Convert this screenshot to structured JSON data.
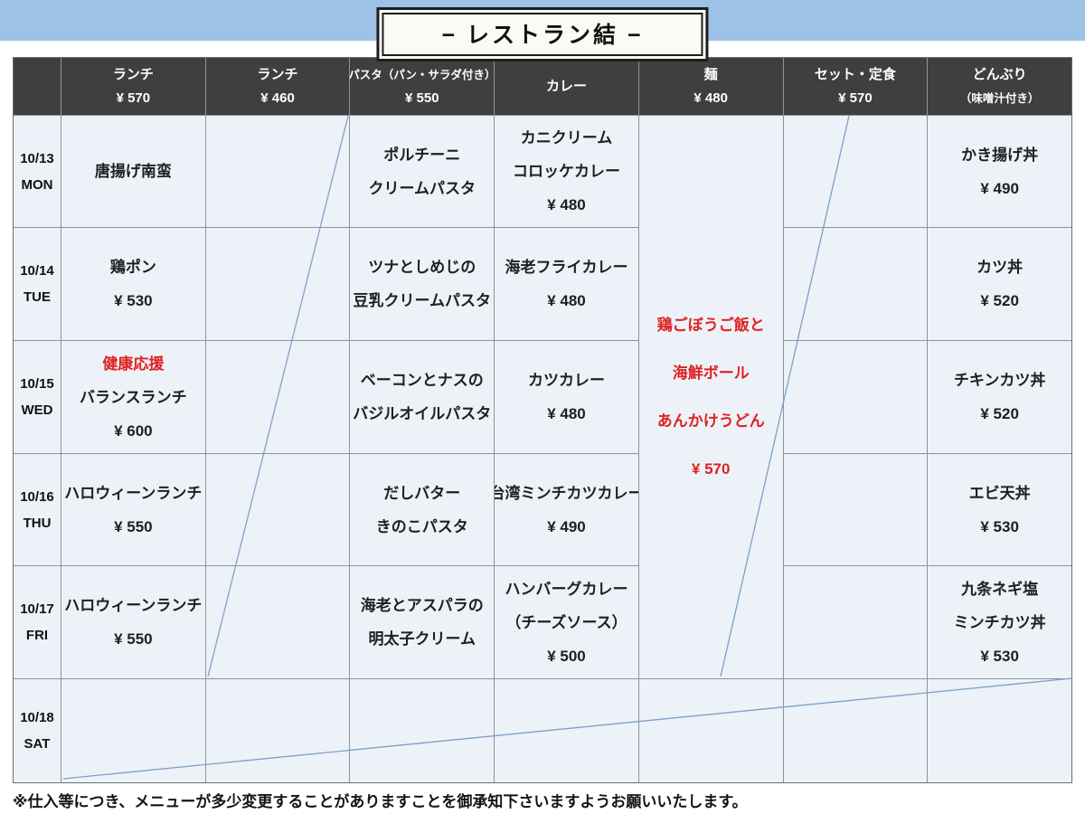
{
  "banner": {
    "title": "− レストラン結 −"
  },
  "colors": {
    "banner_bg": "#9cc2e6",
    "header_bg": "#3f3f3f",
    "cell_bg": "#edf2f8",
    "grid_line": "#8f9399",
    "accent_red": "#e02020",
    "diagonal_line": "#7f9fc6"
  },
  "table": {
    "header_columns": [
      {
        "lines": []
      },
      {
        "lines": [
          {
            "t": "ランチ"
          },
          {
            "t": "¥ 570"
          }
        ]
      },
      {
        "lines": [
          {
            "t": "ランチ"
          },
          {
            "t": "¥ 460"
          }
        ]
      },
      {
        "lines": [
          {
            "t": "パスタ（パン・サラダ付き）",
            "small": true
          },
          {
            "t": "¥ 550"
          }
        ]
      },
      {
        "lines": [
          {
            "t": "カレー"
          }
        ]
      },
      {
        "lines": [
          {
            "t": "麺"
          },
          {
            "t": "¥ 480"
          }
        ]
      },
      {
        "lines": [
          {
            "t": "セット・定食"
          },
          {
            "t": "¥ 570"
          }
        ]
      },
      {
        "lines": [
          {
            "t": "どんぶり"
          },
          {
            "t": "（味噌汁付き）",
            "small": true
          }
        ]
      }
    ],
    "rows": [
      {
        "date": "10/13",
        "day": "MON",
        "cells": [
          {
            "lines": [
              {
                "t": "唐揚げ南蛮"
              }
            ]
          },
          {
            "lines": []
          },
          {
            "lines": [
              {
                "t": "ポルチーニ"
              },
              {
                "t": "クリームパスタ"
              }
            ]
          },
          {
            "lines": [
              {
                "t": "カニクリーム"
              },
              {
                "t": "コロッケカレー"
              },
              {
                "t": "¥ 480"
              }
            ]
          },
          null,
          {
            "lines": []
          },
          {
            "lines": [
              {
                "t": "かき揚げ丼"
              },
              {
                "t": "¥ 490"
              }
            ]
          }
        ]
      },
      {
        "date": "10/14",
        "day": "TUE",
        "cells": [
          {
            "lines": [
              {
                "t": "鶏ポン"
              },
              {
                "t": "¥ 530"
              }
            ]
          },
          {
            "lines": []
          },
          {
            "lines": [
              {
                "t": "ツナとしめじの"
              },
              {
                "t": "豆乳クリームパスタ"
              }
            ]
          },
          {
            "lines": [
              {
                "t": "海老フライカレー"
              },
              {
                "t": "¥ 480"
              }
            ]
          },
          null,
          {
            "lines": []
          },
          {
            "lines": [
              {
                "t": "カツ丼"
              },
              {
                "t": "¥ 520"
              }
            ]
          }
        ]
      },
      {
        "date": "10/15",
        "day": "WED",
        "cells": [
          {
            "lines": [
              {
                "t": "健康応援",
                "red": true
              },
              {
                "t": "バランスランチ"
              },
              {
                "t": "¥ 600"
              }
            ]
          },
          {
            "lines": []
          },
          {
            "lines": [
              {
                "t": "ベーコンとナスの"
              },
              {
                "t": "バジルオイルパスタ"
              }
            ]
          },
          {
            "lines": [
              {
                "t": "カツカレー"
              },
              {
                "t": "¥ 480"
              }
            ]
          },
          null,
          {
            "lines": []
          },
          {
            "lines": [
              {
                "t": "チキンカツ丼"
              },
              {
                "t": "¥ 520"
              }
            ]
          }
        ]
      },
      {
        "date": "10/16",
        "day": "THU",
        "cells": [
          {
            "lines": [
              {
                "t": "ハロウィーンランチ"
              },
              {
                "t": "¥ 550"
              }
            ]
          },
          {
            "lines": []
          },
          {
            "lines": [
              {
                "t": "だしバター"
              },
              {
                "t": "きのこパスタ"
              }
            ]
          },
          {
            "lines": [
              {
                "t": "台湾ミンチカツカレー"
              },
              {
                "t": "¥ 490"
              }
            ]
          },
          null,
          {
            "lines": []
          },
          {
            "lines": [
              {
                "t": "エビ天丼"
              },
              {
                "t": "¥ 530"
              }
            ]
          }
        ]
      },
      {
        "date": "10/17",
        "day": "FRI",
        "cells": [
          {
            "lines": [
              {
                "t": "ハロウィーンランチ"
              },
              {
                "t": "¥ 550"
              }
            ]
          },
          {
            "lines": []
          },
          {
            "lines": [
              {
                "t": "海老とアスパラの"
              },
              {
                "t": "明太子クリーム"
              }
            ]
          },
          {
            "lines": [
              {
                "t": "ハンバーグカレー"
              },
              {
                "t": "（チーズソース）"
              },
              {
                "t": "¥ 500"
              }
            ]
          },
          null,
          {
            "lines": []
          },
          {
            "lines": [
              {
                "t": "九条ネギ塩"
              },
              {
                "t": "ミンチカツ丼"
              },
              {
                "t": "¥ 530"
              }
            ]
          }
        ]
      },
      {
        "date": "10/18",
        "day": "SAT",
        "cells": [
          {
            "lines": []
          },
          {
            "lines": []
          },
          {
            "lines": []
          },
          {
            "lines": []
          },
          {
            "lines": []
          },
          {
            "lines": []
          },
          {
            "lines": []
          }
        ]
      }
    ],
    "merged_cell": {
      "column_index": 4,
      "row_start": 0,
      "row_span": 5,
      "lines": [
        {
          "t": "鶏ごぼうご飯と",
          "red": true
        },
        {
          "t": "海鮮ボール",
          "red": true
        },
        {
          "t": "あんかけうどん",
          "red": true
        },
        {
          "t": "¥ 570",
          "red": true
        }
      ]
    }
  },
  "footnote": "※仕入等につき、メニューが多少変更することがありますことを御承知下さいますようお願いいたします。"
}
